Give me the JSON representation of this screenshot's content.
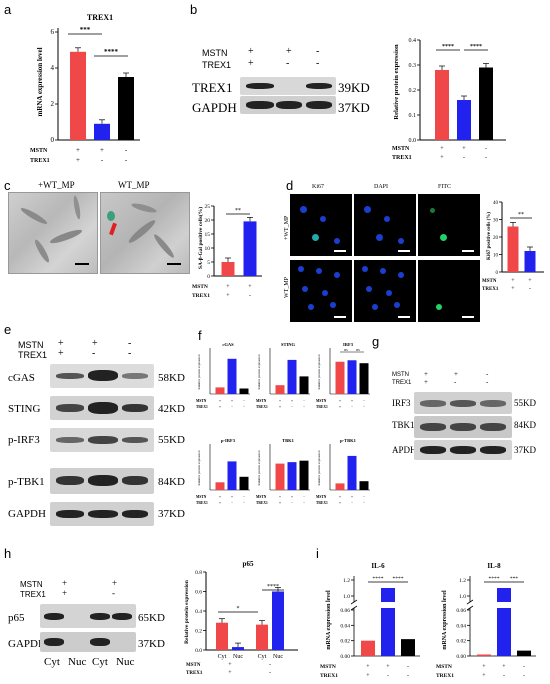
{
  "panels": {
    "a": {
      "letter": "a",
      "title": "TREX1",
      "ylabel": "mRNA expression level",
      "yticks": [
        "0",
        "2",
        "4",
        "6"
      ],
      "rows": [
        {
          "label": "MSTN",
          "marks": [
            "+",
            "+",
            "-"
          ]
        },
        {
          "label": "TREX1",
          "marks": [
            "+",
            "-",
            "-"
          ]
        }
      ],
      "sig": [
        "***",
        "****"
      ]
    },
    "b": {
      "letter": "b",
      "blot_rows": [
        {
          "label": "MSTN",
          "marks": [
            "+",
            "+",
            "-"
          ]
        },
        {
          "label": "TREX1",
          "marks": [
            "+",
            "-",
            "-"
          ]
        }
      ],
      "bands": [
        {
          "name": "TREX1",
          "kd": "39KD"
        },
        {
          "name": "GAPDH",
          "kd": "37KD"
        }
      ],
      "ylabel": "Relative protein expression",
      "yticks": [
        "0.0",
        "0.1",
        "0.2",
        "0.3",
        "0.4"
      ],
      "rows": [
        {
          "label": "MSTN",
          "marks": [
            "+",
            "+",
            "-"
          ]
        },
        {
          "label": "TREX1",
          "marks": [
            "+",
            "-",
            "-"
          ]
        }
      ],
      "sig": [
        "****",
        "****"
      ]
    },
    "c": {
      "letter": "c",
      "img_labels": [
        "+WT_MP",
        "WT_MP"
      ],
      "ylabel": "SA-β-Gal positive cells(%)",
      "yticks": [
        "0",
        "5",
        "10",
        "15",
        "20",
        "25"
      ],
      "rows": [
        {
          "label": "MSTN",
          "marks": [
            "+",
            "+"
          ]
        },
        {
          "label": "TREX1",
          "marks": [
            "+",
            "-"
          ]
        }
      ],
      "sig": [
        "**"
      ]
    },
    "d": {
      "letter": "d",
      "col_labels": [
        "Ki67",
        "DAPI",
        "FITC"
      ],
      "row_labels": [
        "+WT_MP",
        "WT_MP"
      ],
      "ylabel": "Ki67 positive cells (%)",
      "yticks": [
        "0",
        "10",
        "20",
        "30",
        "40"
      ],
      "rows": [
        {
          "label": "MSTN",
          "marks": [
            "+",
            "+"
          ]
        },
        {
          "label": "TREX1",
          "marks": [
            "+",
            "-"
          ]
        }
      ],
      "sig": [
        "**"
      ]
    },
    "e": {
      "letter": "e",
      "blot_rows": [
        {
          "label": "MSTN",
          "marks": [
            "+",
            "+",
            "-"
          ]
        },
        {
          "label": "TREX1",
          "marks": [
            "+",
            "-",
            "-"
          ]
        }
      ],
      "bands": [
        {
          "name": "cGAS",
          "kd": "58KD"
        },
        {
          "name": "STING",
          "kd": "42KD"
        },
        {
          "name": "p-IRF3",
          "kd": "55KD"
        },
        {
          "name": "p-TBK1",
          "kd": "84KD"
        },
        {
          "name": "GAPDH",
          "kd": "37KD"
        }
      ]
    },
    "f": {
      "letter": "f",
      "ylabel": "Relative protein expression",
      "rows": [
        {
          "label": "MSTN",
          "marks": [
            "+",
            "+",
            "-"
          ]
        },
        {
          "label": "TREX1",
          "marks": [
            "+",
            "-",
            "-"
          ]
        }
      ]
    },
    "g": {
      "letter": "g",
      "blot_rows": [
        {
          "label": "MSTN",
          "marks": [
            "+",
            "+",
            "-"
          ]
        },
        {
          "label": "TREX1",
          "marks": [
            "+",
            "-",
            "-"
          ]
        }
      ],
      "bands": [
        {
          "name": "IRF3",
          "kd": "55KD"
        },
        {
          "name": "TBK1",
          "kd": "84KD"
        },
        {
          "name": "APDH",
          "kd": "37KD"
        }
      ]
    },
    "h": {
      "letter": "h",
      "blot_rows": [
        {
          "label": "MSTN",
          "marks": [
            "+",
            "+"
          ]
        },
        {
          "label": "TREX1",
          "marks": [
            "+",
            "-"
          ]
        }
      ],
      "bands": [
        {
          "name": "p65",
          "kd": "65KD"
        },
        {
          "name": "GAPDH",
          "kd": "37KD"
        }
      ],
      "lanes": [
        "Cyt",
        "Nuc",
        "Cyt",
        "Nuc"
      ],
      "ylabel": "Relative protein expression",
      "yticks": [
        "0.0",
        "0.2",
        "0.4",
        "0.6",
        "0.8"
      ],
      "rows": [
        {
          "label": "MSTN",
          "marks": [
            "+",
            "+",
            "-",
            "-"
          ]
        },
        {
          "label": "TREX1",
          "marks": [
            "+",
            "+",
            "-",
            "-"
          ]
        }
      ],
      "sig": [
        "*",
        "****"
      ]
    },
    "i": {
      "letter": "i",
      "ylabel": "mRNA expression level",
      "yticks_low": [
        "0.00",
        "0.02",
        "0.04",
        "0.06"
      ],
      "yticks_high": [
        "1.0",
        "1.2"
      ],
      "rows": [
        {
          "label": "MSTN",
          "marks": [
            "+",
            "+",
            "-"
          ]
        },
        {
          "label": "TREX1",
          "marks": [
            "+",
            "-",
            "-"
          ]
        }
      ],
      "sig_il6": [
        "****",
        "****"
      ],
      "sig_il8": [
        "****",
        "***"
      ]
    }
  },
  "chart_data": [
    {
      "panel": "a",
      "type": "bar",
      "title": "TREX1",
      "categories": [
        "1",
        "2",
        "3"
      ],
      "values": [
        4.9,
        0.9,
        3.5
      ],
      "ylabel": "mRNA expression level",
      "ylim": [
        0,
        6
      ],
      "colors": [
        "#f04848",
        "#2222ee",
        "#000000"
      ]
    },
    {
      "panel": "b",
      "type": "bar",
      "title": "",
      "categories": [
        "1",
        "2",
        "3"
      ],
      "values": [
        0.28,
        0.16,
        0.29
      ],
      "ylabel": "Relative protein expression",
      "ylim": [
        0,
        0.4
      ],
      "colors": [
        "#f04848",
        "#2222ee",
        "#000000"
      ]
    },
    {
      "panel": "c",
      "type": "bar",
      "title": "",
      "categories": [
        "1",
        "2"
      ],
      "values": [
        5,
        19.5
      ],
      "ylabel": "SA-β-Gal positive cells(%)",
      "ylim": [
        0,
        25
      ],
      "colors": [
        "#f04848",
        "#2222ee"
      ]
    },
    {
      "panel": "d",
      "type": "bar",
      "title": "",
      "categories": [
        "1",
        "2"
      ],
      "values": [
        26,
        12
      ],
      "ylabel": "Ki67 positive cells (%)",
      "ylim": [
        0,
        40
      ],
      "colors": [
        "#f04848",
        "#2222ee"
      ]
    },
    {
      "panel": "f1",
      "type": "bar",
      "title": "cGAS",
      "categories": [
        "1",
        "2",
        "3"
      ],
      "values": [
        0.3,
        1.6,
        0.25
      ],
      "ylim": [
        0,
        2
      ],
      "colors": [
        "#f04848",
        "#2222ee",
        "#000000"
      ]
    },
    {
      "panel": "f2",
      "type": "bar",
      "title": "STING",
      "categories": [
        "1",
        "2",
        "3"
      ],
      "values": [
        0.4,
        1.55,
        0.8
      ],
      "ylim": [
        0,
        2
      ],
      "colors": [
        "#f04848",
        "#2222ee",
        "#000000"
      ]
    },
    {
      "panel": "f3",
      "type": "bar",
      "title": "IRF3",
      "categories": [
        "1",
        "2",
        "3"
      ],
      "values": [
        1.1,
        1.15,
        1.05
      ],
      "ylim": [
        0,
        1.5
      ],
      "colors": [
        "#f04848",
        "#2222ee",
        "#000000"
      ],
      "sig": [
        "ns",
        "ns"
      ]
    },
    {
      "panel": "f4",
      "type": "bar",
      "title": "p-IRF3",
      "categories": [
        "1",
        "2",
        "3"
      ],
      "values": [
        0.35,
        1.3,
        0.6
      ],
      "ylim": [
        0,
        2
      ],
      "colors": [
        "#f04848",
        "#2222ee",
        "#000000"
      ]
    },
    {
      "panel": "f5",
      "type": "bar",
      "title": "TBK1",
      "categories": [
        "1",
        "2",
        "3"
      ],
      "values": [
        0.9,
        0.95,
        1.0
      ],
      "ylim": [
        0,
        1.5
      ],
      "colors": [
        "#f04848",
        "#2222ee",
        "#000000"
      ]
    },
    {
      "panel": "f6",
      "type": "bar",
      "title": "p-TBK1",
      "categories": [
        "1",
        "2",
        "3"
      ],
      "values": [
        0.3,
        1.55,
        0.4
      ],
      "ylim": [
        0,
        2
      ],
      "colors": [
        "#f04848",
        "#2222ee",
        "#000000"
      ]
    },
    {
      "panel": "h",
      "type": "bar",
      "title": "p65",
      "categories": [
        "Cyt",
        "Nuc",
        "Cyt",
        "Nuc"
      ],
      "values": [
        0.28,
        0.03,
        0.26,
        0.6
      ],
      "ylabel": "Relative protein expression",
      "ylim": [
        0,
        0.8
      ],
      "colors": [
        "#f04848",
        "#2222ee",
        "#f04848",
        "#2222ee"
      ]
    },
    {
      "panel": "i1",
      "type": "bar",
      "title": "IL-6",
      "categories": [
        "1",
        "2",
        "3"
      ],
      "values": [
        0.02,
        1.1,
        0.022
      ],
      "ylabel": "mRNA expression level",
      "colors": [
        "#f04848",
        "#2222ee",
        "#000000"
      ]
    },
    {
      "panel": "i2",
      "type": "bar",
      "title": "IL-8",
      "categories": [
        "1",
        "2",
        "3"
      ],
      "values": [
        0.002,
        1.1,
        0.007
      ],
      "ylabel": "mRNA expression level",
      "colors": [
        "#f04848",
        "#2222ee",
        "#000000"
      ]
    }
  ]
}
